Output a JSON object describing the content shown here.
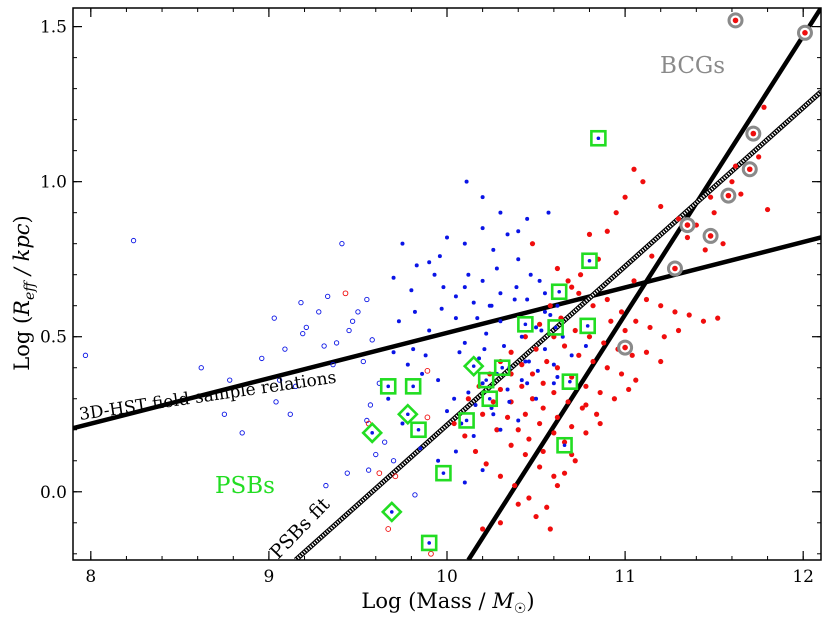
{
  "chart_data": {
    "type": "scatter",
    "xlabel": "Log (Mass / M⊙)",
    "ylabel": "Log (R_eff / kpc)",
    "xlim": [
      7.9,
      12.1
    ],
    "ylim": [
      -0.22,
      1.56
    ],
    "x_ticks": [
      8,
      9,
      10,
      11,
      12
    ],
    "y_ticks": [
      0.0,
      0.5,
      1.0,
      1.5
    ],
    "x_tick_labels": [
      "8",
      "9",
      "10",
      "11",
      "12"
    ],
    "y_tick_labels": [
      "0.0",
      "0.5",
      "1.0",
      "1.5"
    ],
    "colors": {
      "blue": "#0a14e6",
      "red": "#f00d0d",
      "green": "#22dd22",
      "gray": "#8a8a8a",
      "line": "#000000"
    },
    "annotations": {
      "bcgs": "BCGs",
      "psbs": "PSBs",
      "field_relation": "3D-HST field sample relations",
      "psbs_fit": "PSBs fit"
    },
    "lines": [
      {
        "name": "field-late-type-relation",
        "style": "solid",
        "x": [
          7.9,
          12.1
        ],
        "y": [
          0.205,
          0.82
        ]
      },
      {
        "name": "field-early-type-relation",
        "style": "solid",
        "x": [
          10.12,
          12.1
        ],
        "y": [
          -0.22,
          1.56
        ]
      },
      {
        "name": "psbs-fit",
        "style": "dotted",
        "x": [
          9.15,
          12.1
        ],
        "y": [
          -0.22,
          1.29
        ]
      }
    ],
    "series": [
      {
        "name": "BCGs",
        "marker": "ringed-dot",
        "x": [
          11.62,
          12.01,
          11.72,
          11.7,
          11.58,
          11.48,
          11.35,
          11.28,
          11.0
        ],
        "y": [
          1.52,
          1.48,
          1.155,
          1.04,
          0.955,
          0.825,
          0.86,
          0.72,
          0.465
        ]
      },
      {
        "name": "PSBs (square)",
        "marker": "square",
        "x": [
          10.85,
          10.8,
          10.63,
          10.44,
          10.31,
          10.22,
          10.24,
          10.61,
          10.79,
          10.69,
          10.66,
          9.67,
          9.81,
          9.84,
          10.11,
          9.98,
          9.9
        ],
        "y": [
          1.14,
          0.745,
          0.645,
          0.54,
          0.4,
          0.36,
          0.3,
          0.53,
          0.535,
          0.355,
          0.15,
          0.34,
          0.34,
          0.2,
          0.23,
          0.06,
          -0.165
        ]
      },
      {
        "name": "PSBs (diamond)",
        "marker": "diamond",
        "x": [
          10.15,
          9.78,
          9.58,
          9.69
        ],
        "y": [
          0.405,
          0.25,
          0.19,
          -0.065
        ]
      },
      {
        "name": "open-blue",
        "marker": "open-circle",
        "x": [
          7.97,
          8.24,
          8.85,
          8.75,
          8.78,
          8.62,
          9.18,
          9.03,
          9.33,
          9.28,
          9.21,
          9.19,
          9.41,
          9.47,
          9.5,
          9.45,
          9.55,
          9.38,
          9.31,
          9.09,
          9.06,
          8.96,
          9.15,
          9.36,
          9.04,
          9.12,
          9.58,
          9.53,
          9.62,
          9.57,
          9.55,
          9.6,
          9.7,
          9.82,
          9.56,
          9.44,
          9.65,
          9.32
        ],
        "y": [
          0.44,
          0.81,
          0.19,
          0.25,
          0.36,
          0.4,
          0.61,
          0.56,
          0.63,
          0.58,
          0.53,
          0.51,
          0.8,
          0.55,
          0.58,
          0.52,
          0.62,
          0.48,
          0.47,
          0.46,
          0.36,
          0.43,
          0.34,
          0.41,
          0.29,
          0.25,
          0.49,
          0.42,
          0.35,
          0.28,
          0.23,
          0.12,
          0.1,
          -0.01,
          0.07,
          0.06,
          0.16,
          0.02
        ]
      },
      {
        "name": "open-red",
        "marker": "open-circle",
        "x": [
          9.43,
          9.56,
          9.89,
          9.62,
          9.71,
          9.67,
          9.89,
          9.91
        ],
        "y": [
          0.64,
          0.22,
          0.39,
          0.06,
          0.05,
          -0.12,
          0.24,
          -0.2
        ]
      },
      {
        "name": "filled-blue",
        "marker": "dot",
        "x": [
          10.11,
          10.2,
          10.45,
          10.57,
          10.34,
          10.26,
          9.96,
          9.75,
          9.83,
          9.7,
          9.93,
          9.98,
          10.12,
          10.05,
          10.28,
          10.4,
          10.47,
          10.52,
          10.39,
          10.15,
          9.97,
          10.05,
          10.24,
          10.38,
          10.55,
          10.3,
          10.22,
          10.1,
          9.9,
          9.82,
          9.73,
          9.81,
          9.88,
          10.07,
          10.18,
          10.32,
          10.42,
          10.5,
          10.58,
          10.62,
          10.46,
          10.35,
          10.28,
          10.2,
          10.12,
          10.04,
          9.95,
          9.86,
          9.78,
          9.7,
          10.0,
          10.08,
          10.16,
          10.26,
          10.34,
          10.42,
          10.51,
          10.6,
          10.7,
          10.78,
          10.65,
          10.55,
          10.45,
          10.35,
          10.25,
          10.15,
          10.05,
          9.95,
          9.85,
          9.75,
          9.67,
          10.1,
          10.2,
          10.3,
          10.4,
          10.5,
          10.6,
          10.4,
          10.3,
          10.2,
          10.1,
          10.0,
          9.9,
          9.8,
          10.25,
          10.45,
          10.55,
          10.2,
          10.1,
          10.3,
          10.17,
          10.44,
          10.53,
          10.62,
          10.21
        ],
        "y": [
          1.0,
          0.85,
          0.88,
          0.9,
          0.83,
          0.78,
          0.76,
          0.8,
          0.73,
          0.69,
          0.7,
          0.66,
          0.7,
          0.63,
          0.72,
          0.75,
          0.7,
          0.68,
          0.66,
          0.61,
          0.59,
          0.56,
          0.6,
          0.62,
          0.64,
          0.55,
          0.51,
          0.48,
          0.52,
          0.58,
          0.55,
          0.46,
          0.44,
          0.45,
          0.43,
          0.47,
          0.5,
          0.53,
          0.57,
          0.6,
          0.42,
          0.4,
          0.38,
          0.35,
          0.32,
          0.3,
          0.36,
          0.38,
          0.41,
          0.45,
          0.26,
          0.22,
          0.28,
          0.25,
          0.33,
          0.36,
          0.39,
          0.41,
          0.44,
          0.47,
          0.5,
          0.46,
          0.35,
          0.29,
          0.27,
          0.18,
          0.13,
          0.1,
          0.14,
          0.22,
          0.3,
          0.03,
          0.07,
          0.2,
          0.23,
          0.3,
          0.35,
          0.84,
          0.9,
          0.95,
          0.8,
          0.82,
          0.74,
          0.65,
          0.6,
          0.62,
          0.58,
          0.68,
          0.66,
          0.64,
          0.56,
          0.42,
          0.52,
          0.37,
          0.46
        ]
      },
      {
        "name": "filled-red",
        "marker": "dot",
        "x": [
          11.78,
          11.75,
          11.62,
          11.6,
          11.65,
          11.8,
          11.48,
          11.5,
          11.4,
          11.55,
          11.05,
          11.1,
          11.2,
          11.3,
          11.35,
          11.45,
          11.0,
          10.95,
          10.9,
          11.15,
          11.25,
          10.8,
          10.85,
          10.75,
          10.7,
          11.05,
          11.12,
          11.2,
          11.28,
          11.36,
          11.44,
          11.52,
          10.62,
          10.68,
          10.74,
          10.82,
          10.9,
          10.98,
          11.06,
          11.14,
          11.22,
          11.3,
          10.58,
          10.64,
          10.72,
          10.8,
          10.88,
          10.96,
          11.04,
          11.12,
          11.2,
          10.52,
          10.6,
          10.66,
          10.74,
          10.82,
          10.9,
          10.98,
          11.06,
          10.44,
          10.5,
          10.56,
          10.62,
          10.7,
          10.78,
          10.86,
          10.94,
          11.02,
          10.36,
          10.42,
          10.48,
          10.54,
          10.6,
          10.68,
          10.76,
          10.84,
          10.3,
          10.36,
          10.42,
          10.48,
          10.54,
          10.62,
          10.7,
          10.78,
          10.24,
          10.3,
          10.36,
          10.44,
          10.52,
          10.6,
          10.66,
          10.18,
          10.26,
          10.34,
          10.4,
          10.46,
          10.54,
          10.12,
          10.2,
          10.28,
          10.36,
          10.44,
          10.52,
          10.6,
          10.04,
          10.1,
          10.16,
          10.22,
          10.3,
          10.38,
          10.46,
          10.56,
          10.66,
          10.72,
          10.62,
          10.5,
          10.4,
          10.3,
          10.2,
          10.92,
          11.0,
          10.86,
          10.78,
          10.7,
          10.58,
          10.48
        ],
        "y": [
          1.24,
          1.08,
          1.05,
          1.0,
          0.96,
          0.91,
          0.95,
          0.9,
          0.86,
          0.8,
          1.04,
          1.0,
          0.92,
          0.88,
          0.82,
          0.78,
          0.95,
          0.9,
          0.84,
          0.76,
          0.72,
          0.83,
          0.75,
          0.7,
          0.66,
          0.68,
          0.62,
          0.6,
          0.58,
          0.57,
          0.55,
          0.56,
          0.72,
          0.68,
          0.64,
          0.6,
          0.62,
          0.58,
          0.55,
          0.53,
          0.5,
          0.52,
          0.6,
          0.56,
          0.52,
          0.5,
          0.48,
          0.46,
          0.44,
          0.45,
          0.42,
          0.54,
          0.5,
          0.47,
          0.44,
          0.42,
          0.4,
          0.38,
          0.36,
          0.5,
          0.46,
          0.42,
          0.4,
          0.37,
          0.34,
          0.32,
          0.3,
          0.33,
          0.45,
          0.41,
          0.38,
          0.35,
          0.32,
          0.29,
          0.27,
          0.25,
          0.42,
          0.38,
          0.34,
          0.3,
          0.27,
          0.24,
          0.21,
          0.19,
          0.38,
          0.33,
          0.29,
          0.25,
          0.22,
          0.19,
          0.16,
          0.34,
          0.29,
          0.24,
          0.2,
          0.17,
          0.13,
          0.3,
          0.25,
          0.2,
          0.15,
          0.12,
          0.08,
          0.05,
          0.22,
          0.18,
          0.13,
          0.09,
          0.05,
          0.02,
          -0.02,
          -0.05,
          0.06,
          0.1,
          0.02,
          -0.08,
          -0.04,
          -0.1,
          -0.12,
          0.55,
          0.52,
          0.22,
          0.28,
          0.12,
          -0.12,
          0.8
        ]
      }
    ]
  }
}
